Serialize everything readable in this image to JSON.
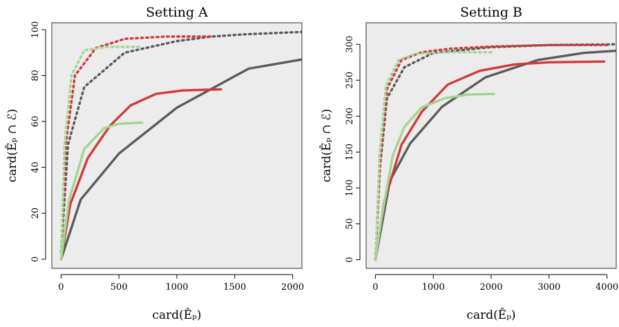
{
  "chart_data": [
    {
      "type": "line",
      "title": "Setting A",
      "xlabel": "card(Êₚ)",
      "ylabel": "card(Êₚ ∩ ℰ)",
      "xlim": [
        -80,
        2080
      ],
      "ylim": [
        -4,
        103
      ],
      "xticks": [
        0,
        500,
        1000,
        1500,
        2000
      ],
      "yticks": [
        0,
        20,
        40,
        60,
        80,
        100
      ],
      "grid": false,
      "background": "#ececec",
      "series": [
        {
          "color": "#5a5a5a",
          "style": "dashed",
          "points": [
            [
              0,
              3
            ],
            [
              60,
              50
            ],
            [
              200,
              75
            ],
            [
              550,
              90
            ],
            [
              1000,
              95
            ],
            [
              1300,
              97
            ],
            [
              1600,
              98
            ],
            [
              2080,
              99
            ]
          ]
        },
        {
          "color": "#d13a3a",
          "style": "dashed",
          "points": [
            [
              0,
              3
            ],
            [
              40,
              50
            ],
            [
              120,
              80
            ],
            [
              300,
              92
            ],
            [
              550,
              96
            ],
            [
              900,
              97
            ],
            [
              1300,
              97
            ]
          ]
        },
        {
          "color": "#a4d492",
          "style": "dashed",
          "points": [
            [
              0,
              3
            ],
            [
              30,
              50
            ],
            [
              90,
              80
            ],
            [
              200,
              91
            ],
            [
              400,
              92.5
            ],
            [
              700,
              92.5
            ]
          ]
        },
        {
          "color": "#5a5a5a",
          "style": "solid",
          "points": [
            [
              0,
              0
            ],
            [
              170,
              26
            ],
            [
              500,
              46
            ],
            [
              1000,
              66
            ],
            [
              1620,
              83
            ],
            [
              2080,
              87
            ]
          ]
        },
        {
          "color": "#d13a3a",
          "style": "solid",
          "points": [
            [
              0,
              0
            ],
            [
              80,
              24
            ],
            [
              230,
              44
            ],
            [
              420,
              58
            ],
            [
              600,
              67
            ],
            [
              820,
              72
            ],
            [
              1050,
              73.5
            ],
            [
              1380,
              74
            ]
          ]
        },
        {
          "color": "#a4d492",
          "style": "solid",
          "points": [
            [
              0,
              0
            ],
            [
              70,
              26
            ],
            [
              200,
              48
            ],
            [
              370,
              57
            ],
            [
              500,
              59
            ],
            [
              700,
              59.5
            ]
          ]
        }
      ]
    },
    {
      "type": "line",
      "title": "Setting B",
      "xlabel": "card(Êₚ)",
      "ylabel": "card(Êₚ ∩ ℰ)",
      "xlim": [
        -160,
        4160
      ],
      "ylim": [
        -12,
        330
      ],
      "xticks": [
        0,
        1000,
        2000,
        3000,
        4000
      ],
      "yticks": [
        0,
        50,
        100,
        150,
        200,
        250,
        300
      ],
      "grid": false,
      "background": "#ececec",
      "series": [
        {
          "color": "#5a5a5a",
          "style": "dashed",
          "points": [
            [
              0,
              0
            ],
            [
              80,
              130
            ],
            [
              200,
              225
            ],
            [
              500,
              268
            ],
            [
              1000,
              288
            ],
            [
              2000,
              296
            ],
            [
              3000,
              299
            ],
            [
              4160,
              300
            ]
          ]
        },
        {
          "color": "#d13a3a",
          "style": "dashed",
          "points": [
            [
              0,
              0
            ],
            [
              80,
              140
            ],
            [
              200,
              238
            ],
            [
              450,
              278
            ],
            [
              800,
              289
            ],
            [
              1300,
              294
            ],
            [
              2000,
              297
            ],
            [
              3000,
              299
            ],
            [
              4000,
              299
            ]
          ]
        },
        {
          "color": "#a4d492",
          "style": "dashed",
          "points": [
            [
              0,
              0
            ],
            [
              70,
              145
            ],
            [
              180,
              242
            ],
            [
              400,
              278
            ],
            [
              700,
              287
            ],
            [
              1200,
              289
            ],
            [
              2050,
              289
            ]
          ]
        },
        {
          "color": "#5a5a5a",
          "style": "solid",
          "points": [
            [
              0,
              0
            ],
            [
              250,
              110
            ],
            [
              600,
              162
            ],
            [
              1150,
              213
            ],
            [
              1900,
              254
            ],
            [
              2800,
              278
            ],
            [
              3600,
              288
            ],
            [
              4160,
              291
            ]
          ]
        },
        {
          "color": "#d13a3a",
          "style": "solid",
          "points": [
            [
              0,
              0
            ],
            [
              150,
              80
            ],
            [
              450,
              160
            ],
            [
              800,
              206
            ],
            [
              1250,
              244
            ],
            [
              1800,
              263
            ],
            [
              2400,
              272
            ],
            [
              3000,
              275
            ],
            [
              3950,
              276
            ]
          ]
        },
        {
          "color": "#a4d492",
          "style": "solid",
          "points": [
            [
              0,
              0
            ],
            [
              100,
              55
            ],
            [
              300,
              145
            ],
            [
              500,
              185
            ],
            [
              800,
              212
            ],
            [
              1200,
              225
            ],
            [
              1600,
              230
            ],
            [
              2050,
              231
            ]
          ]
        }
      ]
    }
  ]
}
